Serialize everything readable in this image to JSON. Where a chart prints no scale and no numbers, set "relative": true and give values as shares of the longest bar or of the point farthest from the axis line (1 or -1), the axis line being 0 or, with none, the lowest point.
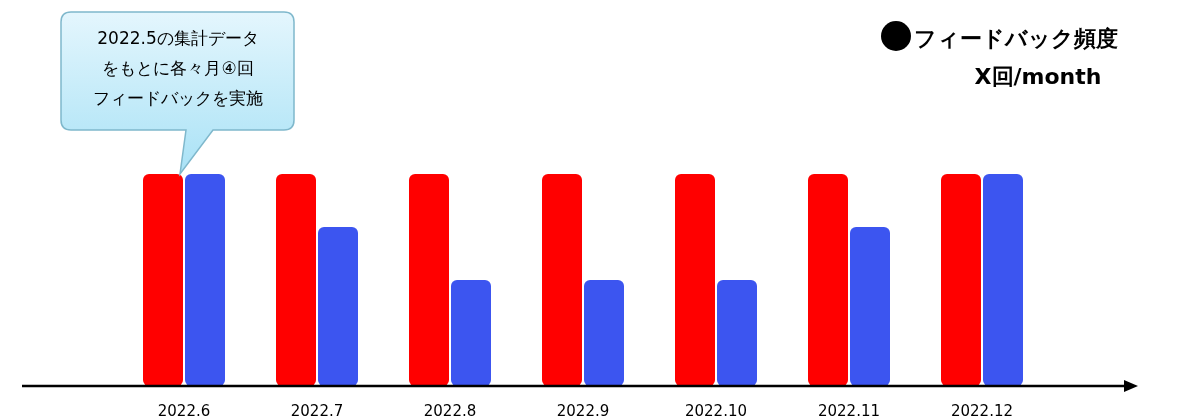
{
  "chart_data": {
    "type": "bar",
    "relative": true,
    "categories": [
      "2022.6",
      "2022.7",
      "2022.8",
      "2022.9",
      "2022.10",
      "2022.11",
      "2022.12"
    ],
    "series": [
      {
        "color": "#ff0000",
        "values": [
          1,
          1,
          1,
          1,
          1,
          1,
          1
        ]
      },
      {
        "color": "#3c55f0",
        "values": [
          1,
          0.75,
          0.5,
          0.5,
          0.5,
          0.75,
          1
        ]
      }
    ],
    "annotations": [
      "2022.5の集計データをもとに各々月④回フィードバックを実施",
      "フィードバック頻度",
      "X回/month"
    ]
  }
}
